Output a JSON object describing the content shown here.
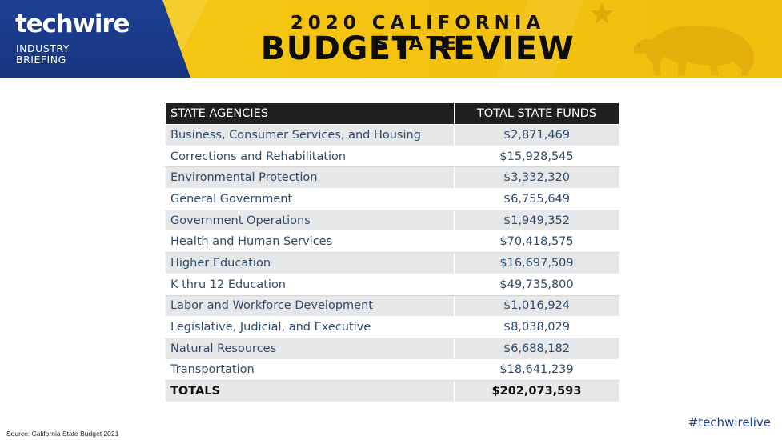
{
  "header": {
    "logo": "techwire",
    "logo_sub_line1": "INDUSTRY",
    "logo_sub_line2": "BRIEFING",
    "title_line1": "2020 CALIFORNIA STATE",
    "title_line2": "BUDGET REVIEW",
    "decor_icons": [
      "star-icon",
      "california-bear-icon"
    ],
    "colors": {
      "banner_yellow": "#f6c915",
      "logo_blue": "#1d3f94"
    }
  },
  "table": {
    "headers": [
      "STATE AGENCIES",
      "TOTAL STATE FUNDS"
    ],
    "rows": [
      {
        "agency": "Business, Consumer Services, and Housing",
        "funds": "$2,871,469"
      },
      {
        "agency": "Corrections and Rehabilitation",
        "funds": "$15,928,545"
      },
      {
        "agency": "Environmental Protection",
        "funds": "$3,332,320"
      },
      {
        "agency": "General Government",
        "funds": "$6,755,649"
      },
      {
        "agency": "Government Operations",
        "funds": "$1,949,352"
      },
      {
        "agency": "Health and Human Services",
        "funds": "$70,418,575"
      },
      {
        "agency": "Higher Education",
        "funds": "$16,697,509"
      },
      {
        "agency": "K thru 12 Education",
        "funds": "$49,735,800"
      },
      {
        "agency": "Labor and Workforce Development",
        "funds": "$1,016,924"
      },
      {
        "agency": "Legislative, Judicial, and Executive",
        "funds": "$8,038,029"
      },
      {
        "agency": "Natural Resources",
        "funds": "$6,688,182"
      },
      {
        "agency": "Transportation",
        "funds": "$18,641,239"
      }
    ],
    "totals": {
      "label": "TOTALS",
      "value": "$202,073,593"
    },
    "colors": {
      "header_bg": "#1f1f1f",
      "row_alt_bg": "#e6e7e8",
      "text": "#2e4b6e"
    }
  },
  "footer": {
    "source": "Source: California State Budget 2021",
    "hashtag": "#techwirelive"
  }
}
